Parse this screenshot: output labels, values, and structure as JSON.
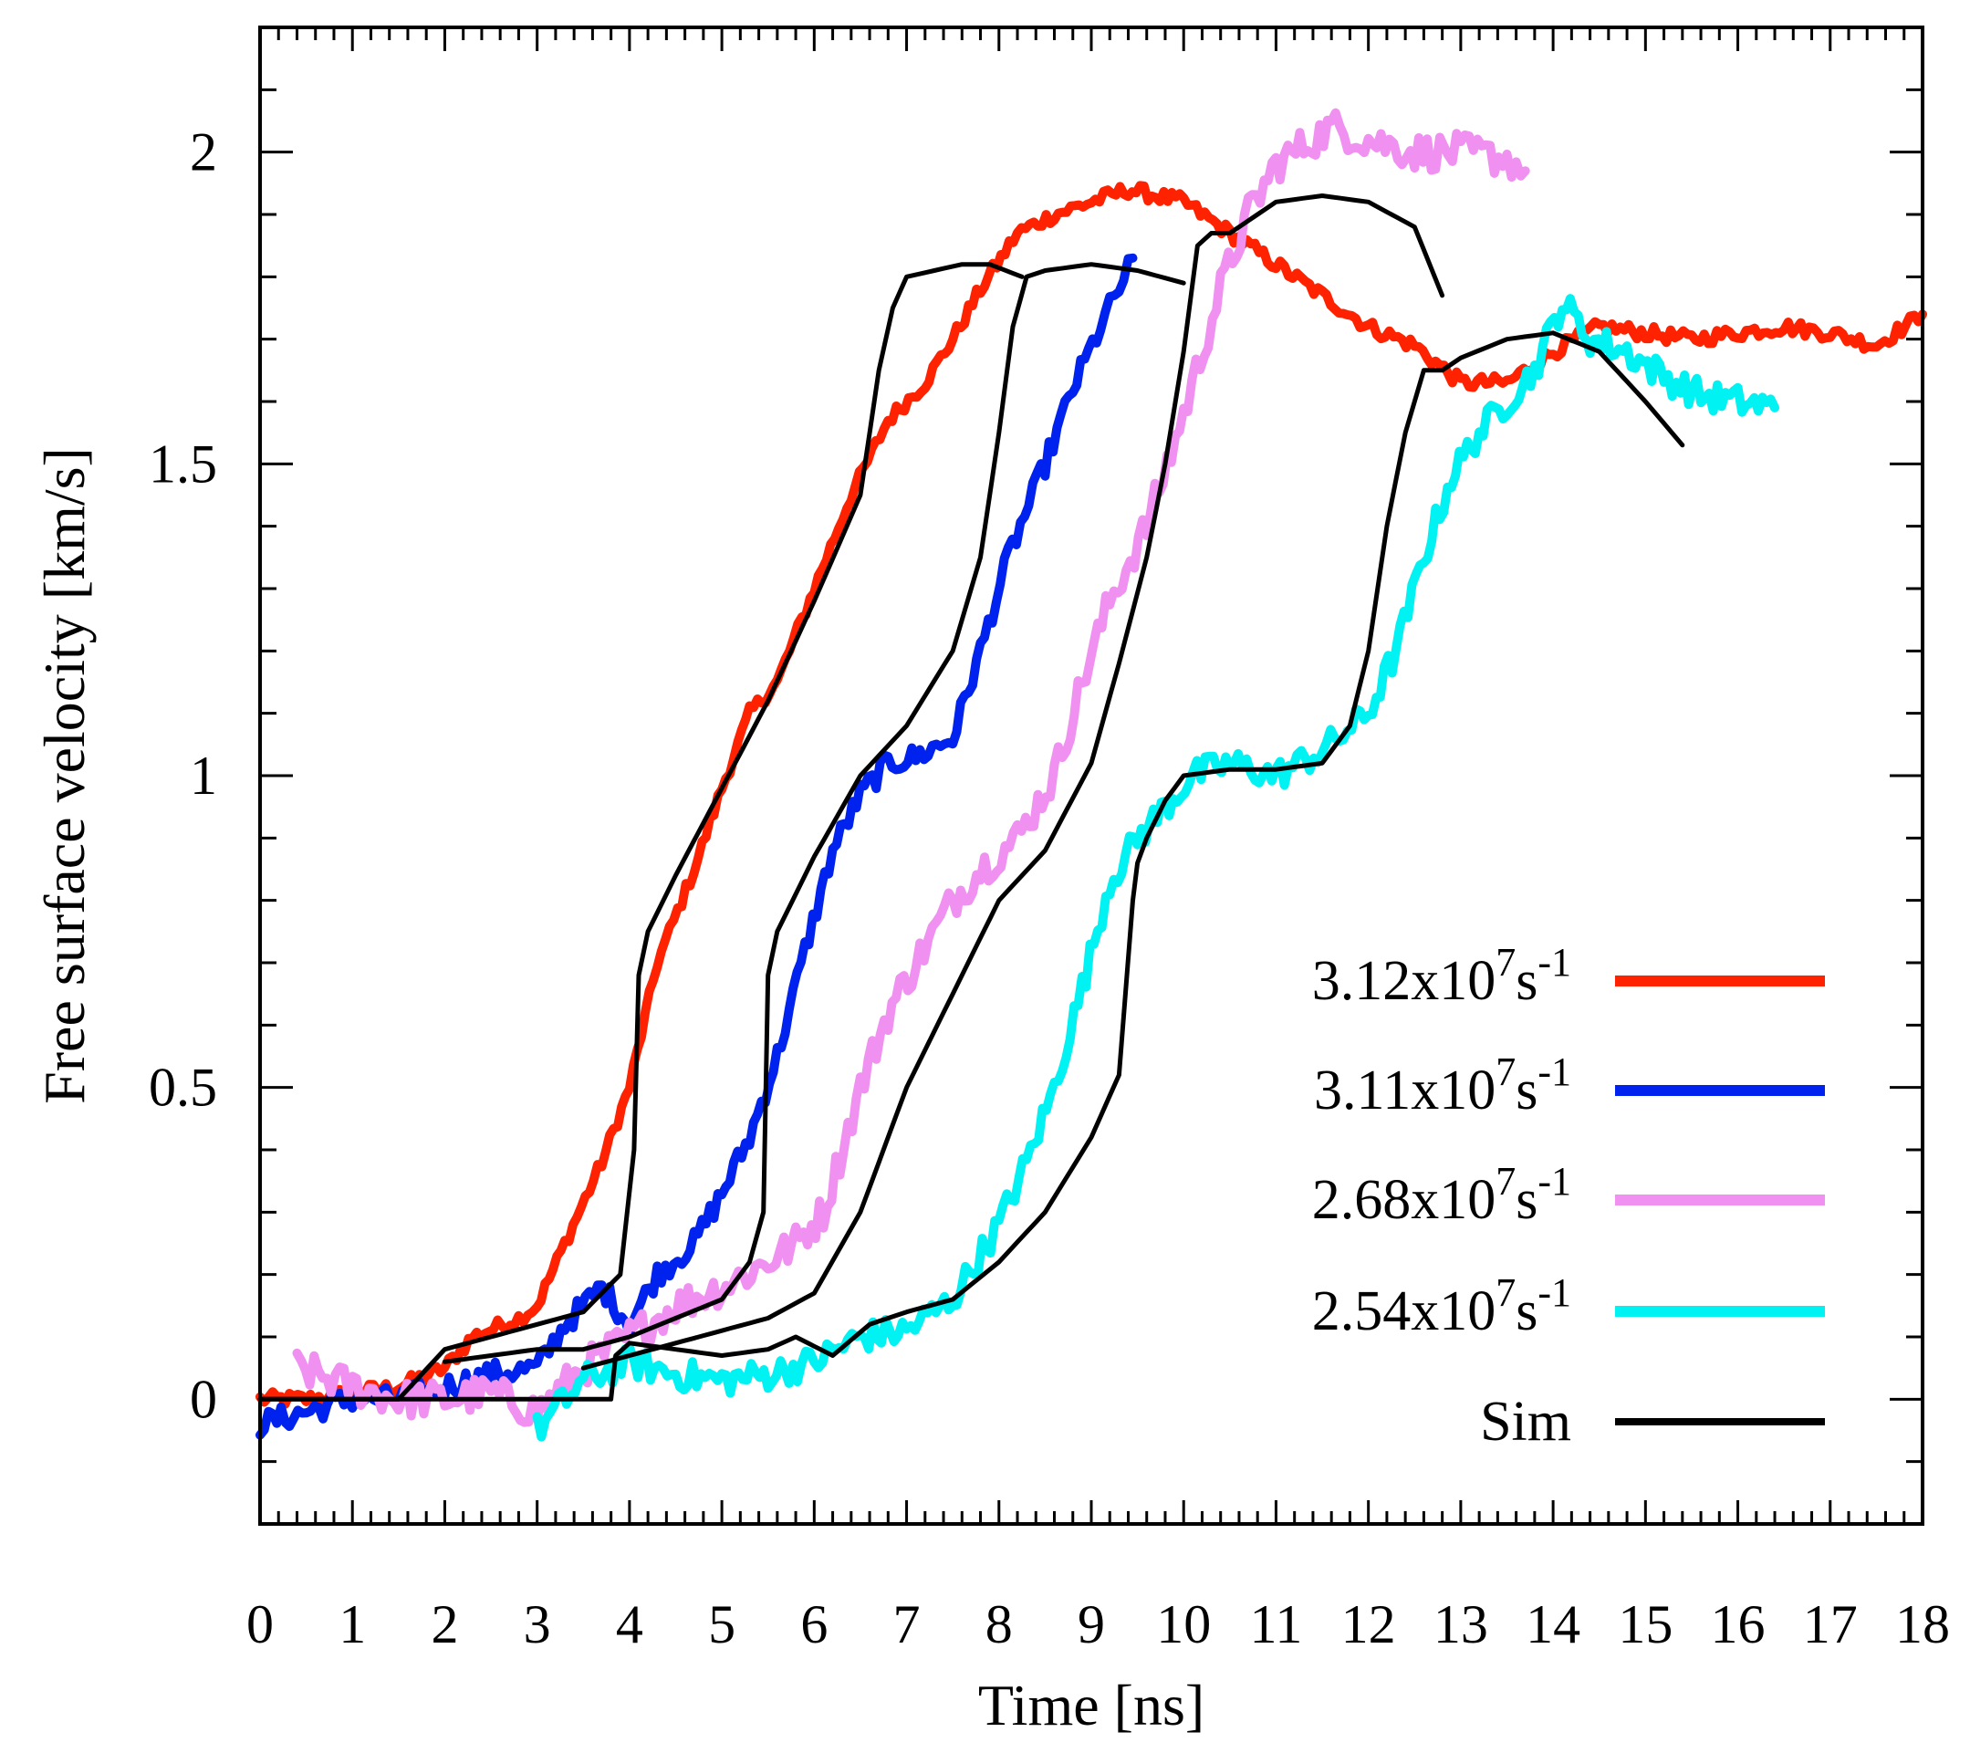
{
  "chart_data": {
    "type": "line",
    "xlabel": "Time [ns]",
    "ylabel": "Free surface velocity [km/s]",
    "xlim": [
      0,
      18
    ],
    "ylim": [
      -0.2,
      2.2
    ],
    "x_ticks": [
      0,
      1,
      2,
      3,
      4,
      5,
      6,
      7,
      8,
      9,
      10,
      11,
      12,
      13,
      14,
      15,
      16,
      17,
      18
    ],
    "x_tick_labels": [
      "0",
      "1",
      "2",
      "3",
      "4",
      "5",
      "6",
      "7",
      "8",
      "9",
      "10",
      "11",
      "12",
      "13",
      "14",
      "15",
      "16",
      "17",
      "18"
    ],
    "y_ticks": [
      0,
      0.5,
      1,
      1.5,
      2
    ],
    "y_tick_labels": [
      "0",
      "0.5",
      "1",
      "1.5",
      "2"
    ],
    "legend_position": "bottom-right",
    "legend": [
      {
        "series": "red",
        "base": "3.12x10",
        "sup1": "7",
        "unit": "s",
        "sup2": "-1"
      },
      {
        "series": "blue",
        "base": "3.11x10",
        "sup1": "7",
        "unit": "s",
        "sup2": "-1"
      },
      {
        "series": "violet",
        "base": "2.68x10",
        "sup1": "7",
        "unit": "s",
        "sup2": "-1"
      },
      {
        "series": "cyan",
        "base": "2.54x10",
        "sup1": "7",
        "unit": "s",
        "sup2": "-1"
      },
      {
        "series": "sim",
        "base": "Sim",
        "sup1": "",
        "unit": "",
        "sup2": ""
      }
    ],
    "series": [
      {
        "id": "red",
        "name": "3.12x10^7 s^-1",
        "color": "#ff2200",
        "width": 10,
        "noise": 0.012,
        "x": [
          0,
          0.5,
          1,
          1.5,
          2,
          2.3,
          2.8,
          3.0,
          3.3,
          3.7,
          4.0,
          4.3,
          4.7,
          5.0,
          5.3,
          5.6,
          6.0,
          6.4,
          6.8,
          7.2,
          7.5,
          7.8,
          8.2,
          8.6,
          9.0,
          9.4,
          9.7,
          10.0,
          10.5,
          11.0,
          11.5,
          12.0,
          12.5,
          13.0,
          13.5,
          14.0,
          14.5,
          15.0,
          15.5,
          16.0,
          16.5,
          17.0,
          17.5,
          18.0
        ],
        "y": [
          0,
          0,
          0.01,
          0.02,
          0.05,
          0.1,
          0.13,
          0.15,
          0.25,
          0.38,
          0.5,
          0.7,
          0.85,
          0.98,
          1.1,
          1.15,
          1.3,
          1.45,
          1.57,
          1.63,
          1.7,
          1.78,
          1.87,
          1.9,
          1.92,
          1.94,
          1.93,
          1.92,
          1.87,
          1.82,
          1.77,
          1.72,
          1.69,
          1.63,
          1.63,
          1.68,
          1.72,
          1.71,
          1.7,
          1.71,
          1.72,
          1.71,
          1.69,
          1.74
        ]
      },
      {
        "id": "blue",
        "name": "3.11x10^7 s^-1",
        "color": "#0022ee",
        "width": 10,
        "noise": 0.02,
        "x": [
          0,
          0.5,
          1,
          1.5,
          2,
          2.5,
          3,
          3.3,
          3.7,
          4.0,
          4.3,
          4.7,
          5.0,
          5.3,
          5.6,
          5.9,
          6.2,
          6.5,
          6.8,
          7.1,
          7.5,
          7.8,
          8.1,
          8.5,
          8.8,
          9.1,
          9.3,
          9.45
        ],
        "y": [
          -0.04,
          -0.02,
          0,
          0,
          0.02,
          0.04,
          0.05,
          0.12,
          0.18,
          0.12,
          0.2,
          0.25,
          0.33,
          0.42,
          0.55,
          0.72,
          0.88,
          0.97,
          1.02,
          1.03,
          1.06,
          1.2,
          1.35,
          1.5,
          1.62,
          1.72,
          1.78,
          1.83
        ]
      },
      {
        "id": "violet",
        "name": "2.68x10^7 s^-1",
        "color": "#f090f0",
        "width": 10,
        "noise": 0.03,
        "x": [
          0.4,
          1,
          1.5,
          2,
          2.5,
          3,
          3.5,
          4,
          4.5,
          5,
          5.5,
          5.8,
          6.1,
          6.5,
          6.8,
          7.1,
          7.5,
          7.8,
          8.2,
          8.6,
          8.9,
          9.2,
          9.6,
          10.0,
          10.4,
          10.7,
          11.0,
          11.3,
          11.6,
          12.0,
          12.5,
          13.0,
          13.5,
          13.7
        ],
        "y": [
          0.05,
          0.02,
          0.0,
          0.0,
          0.01,
          -0.02,
          0.05,
          0.1,
          0.15,
          0.18,
          0.22,
          0.25,
          0.3,
          0.5,
          0.62,
          0.7,
          0.8,
          0.85,
          0.9,
          1.0,
          1.15,
          1.28,
          1.4,
          1.58,
          1.78,
          1.9,
          1.98,
          2.01,
          2.04,
          2.02,
          2.0,
          2.0,
          1.99,
          1.97
        ]
      },
      {
        "id": "cyan",
        "name": "2.54x10^7 s^-1",
        "color": "#00f2f2",
        "width": 10,
        "noise": 0.025,
        "x": [
          3.0,
          3.5,
          4.0,
          4.5,
          5.0,
          5.5,
          6.0,
          6.5,
          7.0,
          7.5,
          8.0,
          8.3,
          8.6,
          8.9,
          9.2,
          9.5,
          9.8,
          10.1,
          10.5,
          11.0,
          11.5,
          12.0,
          12.3,
          12.6,
          12.9,
          13.2,
          13.5,
          13.8,
          14.1,
          14.4,
          14.8,
          15.2,
          15.6,
          16.0,
          16.4
        ],
        "y": [
          -0.05,
          0.03,
          0.06,
          0.04,
          0.03,
          0.04,
          0.06,
          0.1,
          0.11,
          0.16,
          0.28,
          0.38,
          0.5,
          0.66,
          0.83,
          0.9,
          0.95,
          1.0,
          1.02,
          1.0,
          1.04,
          1.1,
          1.2,
          1.35,
          1.48,
          1.55,
          1.6,
          1.65,
          1.76,
          1.7,
          1.68,
          1.64,
          1.61,
          1.6,
          1.59
        ]
      },
      {
        "id": "sim1",
        "name": "Sim",
        "color": "#000000",
        "width": 5,
        "noise": 0,
        "x": [
          0,
          0.5,
          1,
          1.5,
          2,
          2.5,
          3,
          3.5,
          3.9,
          4.05,
          4.1,
          4.2,
          4.5,
          5,
          5.5,
          6,
          6.5,
          6.7,
          6.85,
          7.0,
          7.3,
          7.6,
          7.9,
          8.25
        ],
        "y": [
          0,
          0,
          0,
          0,
          0.08,
          0.1,
          0.12,
          0.14,
          0.2,
          0.4,
          0.68,
          0.75,
          0.84,
          0.98,
          1.12,
          1.28,
          1.45,
          1.65,
          1.75,
          1.8,
          1.81,
          1.82,
          1.82,
          1.8
        ]
      },
      {
        "id": "sim2",
        "name": "Sim",
        "color": "#000000",
        "width": 5,
        "noise": 0,
        "x": [
          2,
          3,
          3.5,
          4,
          4.5,
          5,
          5.3,
          5.45,
          5.5,
          5.6,
          6.0,
          6.5,
          7.0,
          7.5,
          7.8,
          8.0,
          8.15,
          8.3,
          8.5,
          9.0,
          9.5,
          10.0
        ],
        "y": [
          0.06,
          0.08,
          0.08,
          0.1,
          0.13,
          0.16,
          0.22,
          0.3,
          0.68,
          0.75,
          0.87,
          1.0,
          1.08,
          1.2,
          1.35,
          1.55,
          1.72,
          1.8,
          1.81,
          1.82,
          1.81,
          1.79
        ]
      },
      {
        "id": "sim3",
        "name": "Sim",
        "color": "#000000",
        "width": 5,
        "noise": 0,
        "x": [
          3.5,
          4,
          4.5,
          5,
          5.5,
          6,
          6.5,
          7,
          7.5,
          8,
          8.5,
          9.0,
          9.3,
          9.6,
          9.8,
          10.0,
          10.15,
          10.3,
          10.5,
          11.0,
          11.5,
          12.0,
          12.5,
          12.8
        ],
        "y": [
          0.05,
          0.07,
          0.09,
          0.11,
          0.13,
          0.17,
          0.3,
          0.5,
          0.65,
          0.8,
          0.88,
          1.02,
          1.18,
          1.35,
          1.5,
          1.68,
          1.85,
          1.87,
          1.87,
          1.92,
          1.93,
          1.92,
          1.88,
          1.77
        ]
      },
      {
        "id": "sim4",
        "name": "Sim",
        "color": "#000000",
        "width": 5,
        "noise": 0,
        "x": [
          0,
          1,
          2,
          3,
          3.8,
          3.85,
          4,
          4.5,
          5,
          5.5,
          5.8,
          6.2,
          6.6,
          7,
          7.5,
          8,
          8.5,
          9.0,
          9.3,
          9.45,
          9.5,
          9.6,
          9.8,
          10.0,
          10.5,
          11.0,
          11.5,
          11.8,
          12.0,
          12.2,
          12.4,
          12.6,
          12.8,
          13.0,
          13.5,
          14.0,
          14.5,
          15.0,
          15.4
        ],
        "y": [
          0,
          0,
          0,
          0,
          0,
          0.07,
          0.09,
          0.08,
          0.07,
          0.08,
          0.1,
          0.07,
          0.12,
          0.14,
          0.16,
          0.22,
          0.3,
          0.42,
          0.52,
          0.8,
          0.86,
          0.9,
          0.96,
          1.0,
          1.01,
          1.01,
          1.02,
          1.08,
          1.2,
          1.4,
          1.55,
          1.65,
          1.65,
          1.67,
          1.7,
          1.71,
          1.68,
          1.6,
          1.53
        ]
      }
    ]
  }
}
